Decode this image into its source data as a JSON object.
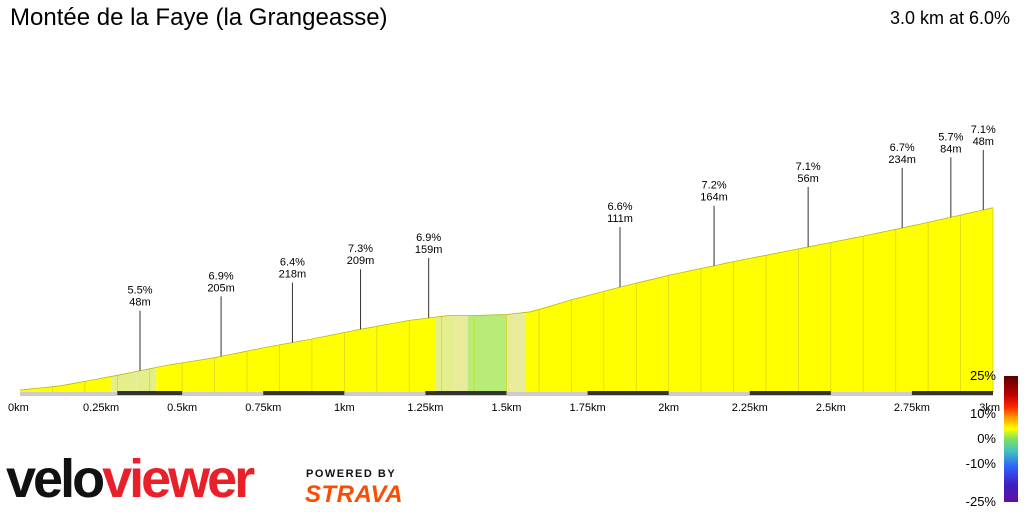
{
  "title": "Montée de la Faye (la Grangeasse)",
  "summary": "3.0 km at 6.0%",
  "brand": {
    "velo": "velo",
    "viewer": "viewer",
    "powered": "POWERED BY",
    "strava": "STRAVA"
  },
  "colors": {
    "gentle": "#ffff00",
    "flat": "#e4ee8c",
    "flat_light": "#e8ec9a",
    "flatter": "#b8ec78",
    "ground": "#cccccc"
  },
  "gradient_scale": {
    "labels": [
      {
        "text": "25%",
        "value": 25
      },
      {
        "text": "10%",
        "value": 10
      },
      {
        "text": "0%",
        "value": 0
      },
      {
        "text": "-10%",
        "value": -10
      },
      {
        "text": "-25%",
        "value": -25
      }
    ]
  },
  "chart_data": {
    "type": "area",
    "title": "Montée de la Faye (la Grangeasse)",
    "xlabel": "",
    "ylabel": "",
    "x_unit": "km",
    "xlim": [
      0,
      3.0
    ],
    "x_ticks": [
      {
        "label": "0km",
        "value": 0
      },
      {
        "label": "0.25km",
        "value": 0.25
      },
      {
        "label": "0.5km",
        "value": 0.5
      },
      {
        "label": "0.75km",
        "value": 0.75
      },
      {
        "label": "1km",
        "value": 1.0
      },
      {
        "label": "1.25km",
        "value": 1.25
      },
      {
        "label": "1.5km",
        "value": 1.5
      },
      {
        "label": "1.75km",
        "value": 1.75
      },
      {
        "label": "2km",
        "value": 2.0
      },
      {
        "label": "2.25km",
        "value": 2.25
      },
      {
        "label": "2.5km",
        "value": 2.5
      },
      {
        "label": "2.75km",
        "value": 2.75
      },
      {
        "label": "3km",
        "value": 3.0
      }
    ],
    "profile": {
      "distance_km": [
        0,
        0.12,
        0.22,
        0.3,
        0.45,
        0.6,
        0.75,
        0.9,
        1.05,
        1.2,
        1.32,
        1.4,
        1.5,
        1.58,
        1.7,
        1.85,
        2.0,
        2.2,
        2.4,
        2.6,
        2.8,
        3.0
      ],
      "elevation_rel": [
        0,
        4,
        10,
        15,
        25,
        33,
        43,
        52,
        62,
        71,
        76,
        76,
        77,
        80,
        92,
        105,
        117,
        131,
        144,
        157,
        171,
        186
      ],
      "ylim": [
        0,
        250
      ]
    },
    "segments": [
      {
        "start": 0.0,
        "end": 0.28,
        "color": "gentle"
      },
      {
        "start": 0.28,
        "end": 0.36,
        "color": "flat"
      },
      {
        "start": 0.36,
        "end": 0.42,
        "color": "flat"
      },
      {
        "start": 0.42,
        "end": 1.28,
        "color": "gentle"
      },
      {
        "start": 1.28,
        "end": 1.34,
        "color": "flat"
      },
      {
        "start": 1.34,
        "end": 1.38,
        "color": "flat_light"
      },
      {
        "start": 1.38,
        "end": 1.5,
        "color": "flatter"
      },
      {
        "start": 1.5,
        "end": 1.56,
        "color": "flat_light"
      },
      {
        "start": 1.56,
        "end": 3.0,
        "color": "gentle"
      }
    ],
    "annotations": [
      {
        "km": 0.37,
        "grade": "5.5%",
        "length": "48m"
      },
      {
        "km": 0.62,
        "grade": "6.9%",
        "length": "205m"
      },
      {
        "km": 0.84,
        "grade": "6.4%",
        "length": "218m"
      },
      {
        "km": 1.05,
        "grade": "7.3%",
        "length": "209m"
      },
      {
        "km": 1.26,
        "grade": "6.9%",
        "length": "159m"
      },
      {
        "km": 1.85,
        "grade": "6.6%",
        "length": "111m"
      },
      {
        "km": 2.14,
        "grade": "7.2%",
        "length": "164m"
      },
      {
        "km": 2.43,
        "grade": "7.1%",
        "length": "56m"
      },
      {
        "km": 2.72,
        "grade": "6.7%",
        "length": "234m"
      },
      {
        "km": 2.87,
        "grade": "5.7%",
        "length": "84m"
      },
      {
        "km": 2.97,
        "grade": "7.1%",
        "length": "48m"
      }
    ]
  }
}
